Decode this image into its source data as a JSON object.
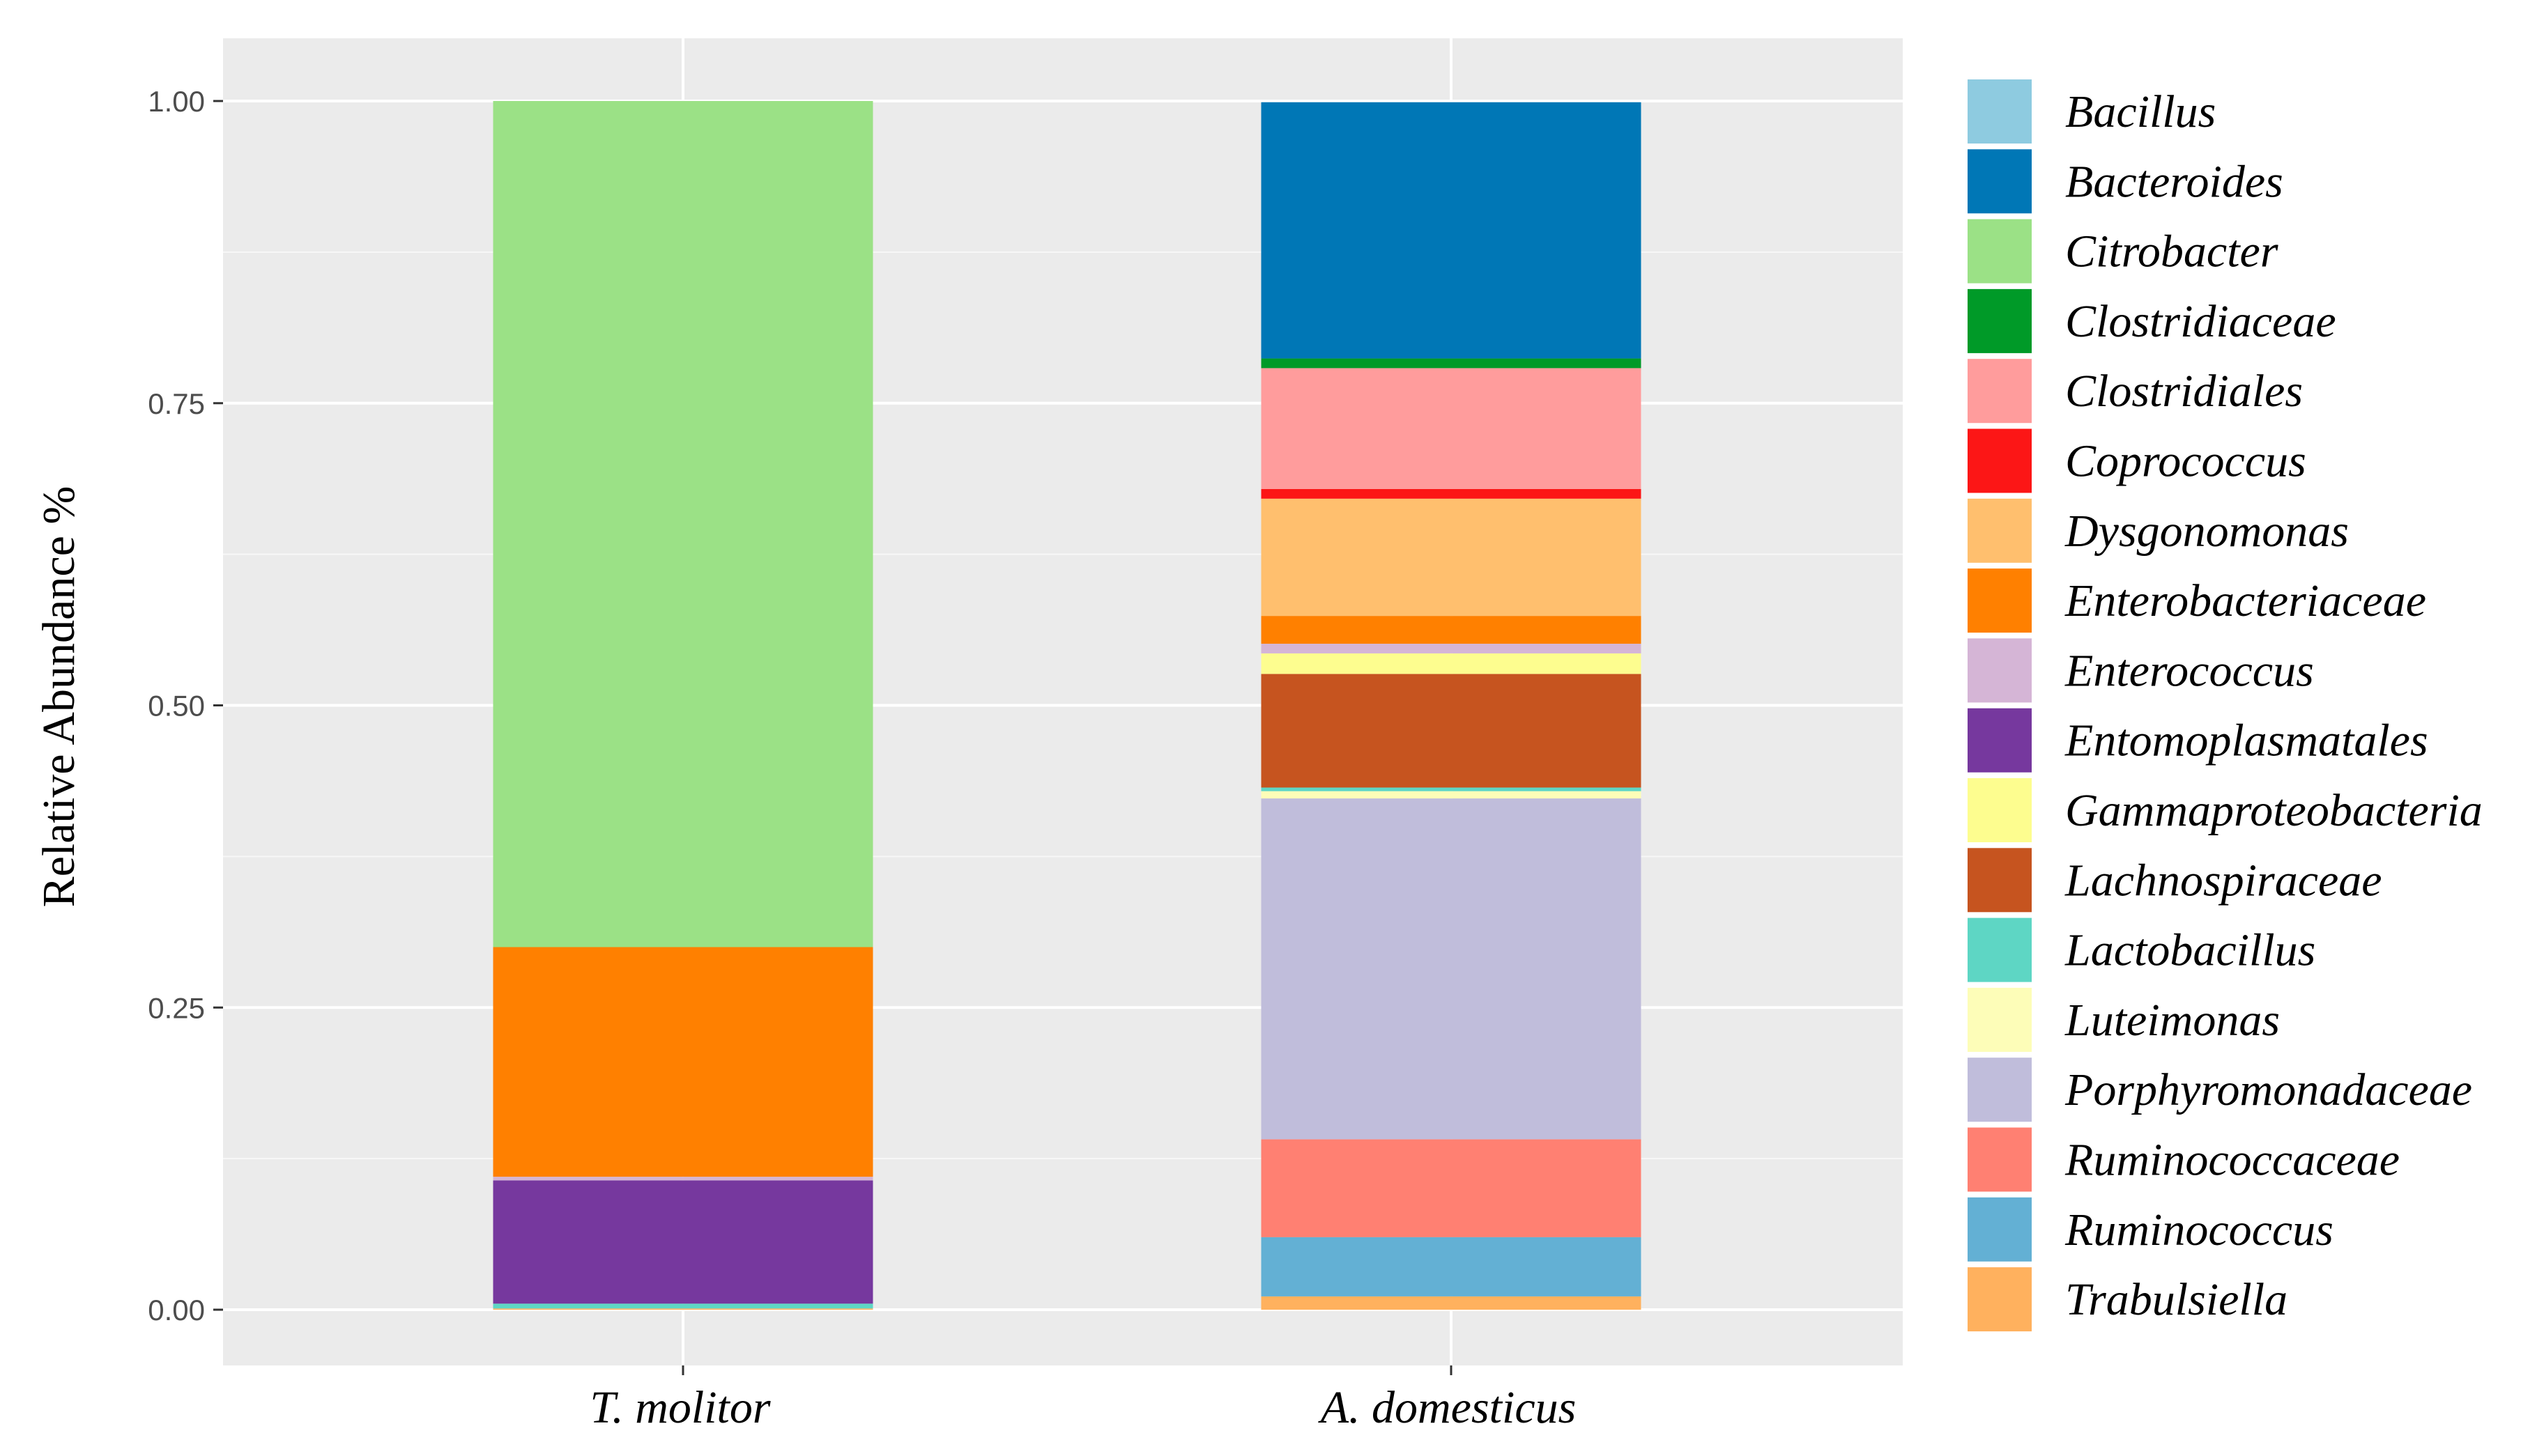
{
  "chart_data": {
    "type": "bar",
    "stacked": true,
    "title": "",
    "xlabel": "",
    "ylabel": "Relative Abundance %",
    "ylim": [
      0,
      1.05
    ],
    "yticks": [
      {
        "value": 0.0,
        "label": "0.00"
      },
      {
        "value": 0.25,
        "label": "0.25"
      },
      {
        "value": 0.5,
        "label": "0.50"
      },
      {
        "value": 0.75,
        "label": "0.75"
      },
      {
        "value": 1.0,
        "label": "1.00"
      }
    ],
    "grid": true,
    "legend_position": "right",
    "categories": [
      "T. molitor",
      "A. domesticus"
    ],
    "series": [
      {
        "name": "Bacillus",
        "color": "#8ecbe0",
        "values": [
          0.0,
          0.0
        ]
      },
      {
        "name": "Bacteroides",
        "color": "#0077b6",
        "values": [
          0.0,
          0.212
        ]
      },
      {
        "name": "Citrobacter",
        "color": "#9be186",
        "values": [
          0.7,
          0.0
        ]
      },
      {
        "name": "Clostridiaceae",
        "color": "#009a28",
        "values": [
          0.0,
          0.008
        ]
      },
      {
        "name": "Clostridiales",
        "color": "#ff9c9c",
        "values": [
          0.0,
          0.1
        ]
      },
      {
        "name": "Coprococcus",
        "color": "#fc1616",
        "values": [
          0.0,
          0.008
        ]
      },
      {
        "name": "Dysgonomonas",
        "color": "#ffbf6e",
        "values": [
          0.0,
          0.097
        ]
      },
      {
        "name": "Enterobacteriaceae",
        "color": "#ff8000",
        "values": [
          0.19,
          0.023
        ]
      },
      {
        "name": "Enterococcus",
        "color": "#d5b5d6",
        "values": [
          0.003,
          0.008
        ]
      },
      {
        "name": "Entomoplasmatales",
        "color": "#76389e",
        "values": [
          0.102,
          0.0
        ]
      },
      {
        "name": "Gammaproteobacteria",
        "color": "#fdfd8f",
        "values": [
          0.0,
          0.017
        ]
      },
      {
        "name": "Lachnospiraceae",
        "color": "#c6541f",
        "values": [
          0.0,
          0.094
        ]
      },
      {
        "name": "Lactobacillus",
        "color": "#5ed6c4",
        "values": [
          0.004,
          0.003
        ]
      },
      {
        "name": "Luteimonas",
        "color": "#fdfdb8",
        "values": [
          0.0,
          0.006
        ]
      },
      {
        "name": "Porphyromonadaceae",
        "color": "#c0bddb",
        "values": [
          0.0,
          0.282
        ]
      },
      {
        "name": "Ruminococcaceae",
        "color": "#ff8072",
        "values": [
          0.0,
          0.081
        ]
      },
      {
        "name": "Ruminococcus",
        "color": "#63b0d4",
        "values": [
          0.0,
          0.049
        ]
      },
      {
        "name": "Trabulsiella",
        "color": "#ffb15e",
        "values": [
          0.001,
          0.011
        ]
      }
    ]
  }
}
